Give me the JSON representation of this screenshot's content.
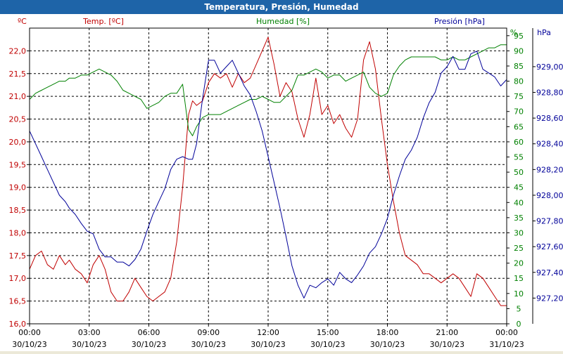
{
  "window": {
    "title": "Temperatura, Presión, Humedad"
  },
  "colors": {
    "temperature": "#C00000",
    "humidity": "#008000",
    "pressure": "#000099",
    "grid": "#000000",
    "titlebar": "#1E64A8",
    "background": "#ffffff"
  },
  "chart_data": {
    "type": "line",
    "title": "Temperatura, Presión, Humedad",
    "grid": true,
    "x_ticks": [
      {
        "time": "00:00",
        "date": "30/10/23"
      },
      {
        "time": "03:00",
        "date": "30/10/23"
      },
      {
        "time": "06:00",
        "date": "30/10/23"
      },
      {
        "time": "09:00",
        "date": "30/10/23"
      },
      {
        "time": "12:00",
        "date": "30/10/23"
      },
      {
        "time": "15:00",
        "date": "30/10/23"
      },
      {
        "time": "18:00",
        "date": "30/10/23"
      },
      {
        "time": "21:00",
        "date": "30/10/23"
      },
      {
        "time": "00:00",
        "date": "31/10/23"
      }
    ],
    "x_range_hours": [
      0,
      24
    ],
    "axes": {
      "temperature": {
        "label": "Temp. [ºC]",
        "unit": "ºC",
        "range": [
          16.0,
          22.5
        ],
        "ticks": [
          "16,0",
          "16,5",
          "17,0",
          "17,5",
          "18,0",
          "18,5",
          "19,0",
          "19,5",
          "20,0",
          "20,5",
          "21,0",
          "21,5",
          "22,0"
        ]
      },
      "humidity": {
        "label": "Humedad [%]",
        "unit": "%",
        "range": [
          0,
          97.5
        ],
        "ticks": [
          "0",
          "5",
          "10",
          "15",
          "20",
          "25",
          "30",
          "35",
          "40",
          "45",
          "50",
          "55",
          "60",
          "65",
          "70",
          "75",
          "80",
          "85",
          "90",
          "95"
        ]
      },
      "pressure": {
        "label": "Presión [hPa]",
        "unit": "hPa",
        "range": [
          927.0,
          929.3
        ],
        "ticks": [
          "927,20",
          "927,40",
          "927,60",
          "927,80",
          "928,00",
          "928,20",
          "928,40",
          "928,60",
          "928,80",
          "929,00"
        ]
      }
    },
    "series": [
      {
        "name": "Temp. [ºC]",
        "axis": "temperature",
        "x": [
          0,
          0.3,
          0.6,
          0.9,
          1.2,
          1.5,
          1.8,
          2.0,
          2.3,
          2.6,
          2.9,
          3.2,
          3.5,
          3.8,
          4.1,
          4.4,
          4.7,
          5.0,
          5.3,
          5.6,
          5.9,
          6.2,
          6.5,
          6.8,
          7.1,
          7.4,
          7.7,
          8.0,
          8.2,
          8.4,
          8.7,
          9.0,
          9.3,
          9.6,
          9.9,
          10.2,
          10.5,
          10.8,
          11.1,
          11.4,
          11.7,
          12.0,
          12.3,
          12.6,
          12.9,
          13.2,
          13.5,
          13.8,
          14.1,
          14.4,
          14.7,
          15.0,
          15.3,
          15.6,
          15.9,
          16.2,
          16.5,
          16.8,
          17.1,
          17.4,
          17.7,
          18.0,
          18.3,
          18.6,
          18.9,
          19.2,
          19.5,
          19.8,
          20.1,
          20.4,
          20.7,
          21.0,
          21.3,
          21.6,
          21.9,
          22.2,
          22.5,
          22.8,
          23.1,
          23.4,
          23.7,
          24.0
        ],
        "values": [
          17.2,
          17.5,
          17.6,
          17.3,
          17.2,
          17.5,
          17.3,
          17.4,
          17.2,
          17.1,
          16.9,
          17.3,
          17.5,
          17.2,
          16.7,
          16.5,
          16.5,
          16.7,
          17.0,
          16.8,
          16.6,
          16.5,
          16.6,
          16.7,
          17.0,
          17.8,
          19.0,
          20.6,
          20.9,
          20.8,
          20.9,
          21.3,
          21.5,
          21.4,
          21.5,
          21.2,
          21.5,
          21.3,
          21.4,
          21.7,
          22.0,
          22.3,
          21.7,
          21.0,
          21.3,
          21.1,
          20.5,
          20.1,
          20.6,
          21.4,
          20.6,
          20.8,
          20.4,
          20.6,
          20.3,
          20.1,
          20.5,
          21.8,
          22.2,
          21.6,
          20.5,
          19.5,
          18.7,
          18.0,
          17.5,
          17.4,
          17.3,
          17.1,
          17.1,
          17.0,
          16.9,
          17.0,
          17.1,
          17.0,
          16.8,
          16.6,
          17.1,
          17.0,
          16.8,
          16.6,
          16.4,
          16.4
        ]
      },
      {
        "name": "Humedad [%]",
        "axis": "humidity",
        "x": [
          0,
          0.3,
          0.6,
          0.9,
          1.2,
          1.5,
          1.8,
          2.0,
          2.3,
          2.6,
          2.9,
          3.2,
          3.5,
          3.8,
          4.1,
          4.4,
          4.7,
          5.0,
          5.3,
          5.6,
          5.9,
          6.2,
          6.5,
          6.8,
          7.1,
          7.4,
          7.7,
          8.0,
          8.2,
          8.4,
          8.7,
          9.0,
          9.3,
          9.6,
          9.9,
          10.2,
          10.5,
          10.8,
          11.1,
          11.4,
          11.7,
          12.0,
          12.3,
          12.6,
          12.9,
          13.2,
          13.5,
          13.8,
          14.1,
          14.4,
          14.7,
          15.0,
          15.3,
          15.6,
          15.9,
          16.2,
          16.5,
          16.8,
          17.1,
          17.4,
          17.7,
          18.0,
          18.3,
          18.6,
          18.9,
          19.2,
          19.5,
          19.8,
          20.1,
          20.4,
          20.7,
          21.0,
          21.3,
          21.6,
          21.9,
          22.2,
          22.5,
          22.8,
          23.1,
          23.4,
          23.7,
          24.0
        ],
        "values": [
          74,
          76,
          77,
          78,
          79,
          80,
          80,
          81,
          81,
          82,
          82,
          83,
          84,
          83,
          82,
          80,
          77,
          76,
          75,
          74,
          71,
          72,
          73,
          75,
          76,
          76,
          79,
          64,
          62,
          65,
          68,
          69,
          69,
          69,
          70,
          71,
          72,
          73,
          74,
          74,
          75,
          74,
          73,
          73,
          75,
          77,
          82,
          82,
          83,
          84,
          83,
          81,
          82,
          82,
          80,
          81,
          82,
          83,
          78,
          76,
          75,
          76,
          82,
          85,
          87,
          88,
          88,
          88,
          88,
          88,
          87,
          87,
          88,
          87,
          87,
          88,
          89,
          90,
          91,
          91,
          92,
          92
        ]
      },
      {
        "name": "Presión [hPa]",
        "axis": "pressure",
        "x": [
          0,
          0.3,
          0.6,
          0.9,
          1.2,
          1.5,
          1.8,
          2.0,
          2.3,
          2.6,
          2.9,
          3.2,
          3.5,
          3.8,
          4.1,
          4.4,
          4.7,
          5.0,
          5.3,
          5.6,
          5.9,
          6.2,
          6.5,
          6.8,
          7.1,
          7.4,
          7.7,
          8.0,
          8.2,
          8.4,
          8.7,
          9.0,
          9.3,
          9.6,
          9.9,
          10.2,
          10.5,
          10.8,
          11.1,
          11.4,
          11.7,
          12.0,
          12.3,
          12.6,
          12.9,
          13.2,
          13.5,
          13.8,
          14.1,
          14.4,
          14.7,
          15.0,
          15.3,
          15.6,
          15.9,
          16.2,
          16.5,
          16.8,
          17.1,
          17.4,
          17.7,
          18.0,
          18.3,
          18.6,
          18.9,
          19.2,
          19.5,
          19.8,
          20.1,
          20.4,
          20.7,
          21.0,
          21.3,
          21.6,
          21.9,
          22.2,
          22.5,
          22.8,
          23.1,
          23.4,
          23.7,
          24.0
        ],
        "values": [
          928.5,
          928.4,
          928.3,
          928.2,
          928.1,
          928.0,
          927.95,
          927.9,
          927.85,
          927.78,
          927.72,
          927.7,
          927.58,
          927.52,
          927.52,
          927.48,
          927.48,
          927.45,
          927.5,
          927.58,
          927.72,
          927.85,
          927.95,
          928.05,
          928.2,
          928.28,
          928.3,
          928.28,
          928.28,
          928.4,
          928.75,
          929.05,
          929.05,
          928.95,
          929.0,
          929.05,
          928.95,
          928.85,
          928.78,
          928.65,
          928.5,
          928.3,
          928.1,
          927.9,
          927.68,
          927.45,
          927.3,
          927.2,
          927.3,
          927.28,
          927.32,
          927.35,
          927.3,
          927.4,
          927.35,
          927.32,
          927.38,
          927.45,
          927.55,
          927.6,
          927.7,
          927.82,
          928.0,
          928.15,
          928.28,
          928.35,
          928.45,
          928.6,
          928.72,
          928.8,
          928.95,
          929.0,
          929.08,
          928.98,
          928.98,
          929.1,
          929.12,
          928.98,
          928.95,
          928.92,
          928.85,
          928.9
        ]
      }
    ]
  }
}
